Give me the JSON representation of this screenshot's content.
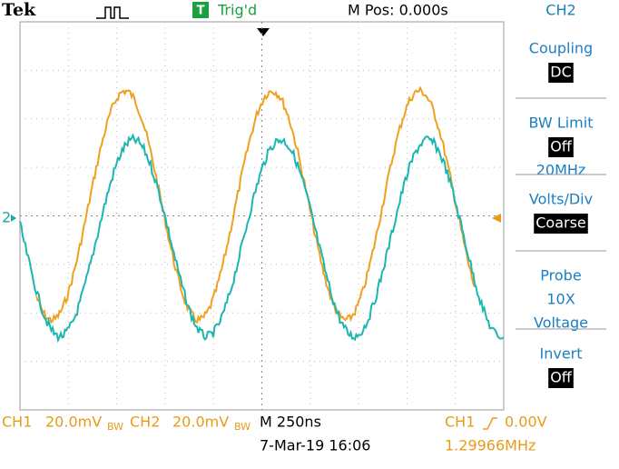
{
  "header": {
    "brand": "Tek",
    "trigger_icon": "T",
    "trigger": "Trig'd",
    "position": "M Pos: 0.000s"
  },
  "screen": {
    "ch2_marker": "2"
  },
  "menu": {
    "title": "CH2",
    "items": [
      {
        "label": "Coupling",
        "value": "DC"
      },
      {
        "label": "BW Limit",
        "value": "Off",
        "extra": "20MHz"
      },
      {
        "label": "Volts/Div",
        "value": "Coarse"
      },
      {
        "label": "Probe",
        "lines": [
          "10X",
          "Voltage"
        ]
      },
      {
        "label": "Invert",
        "value": "Off"
      }
    ]
  },
  "footer": {
    "ch1": "CH1",
    "ch1_scale": "20.0mV",
    "ch1_bw": "BW",
    "ch2": "CH2",
    "ch2_scale": "20.0mV",
    "ch2_bw": "BW",
    "timebase": "M 250ns",
    "date": "7-Mar-19 16:06",
    "trig_source": "CH1",
    "trig_level": "0.00V",
    "frequency": "1.29966MHz"
  }
}
